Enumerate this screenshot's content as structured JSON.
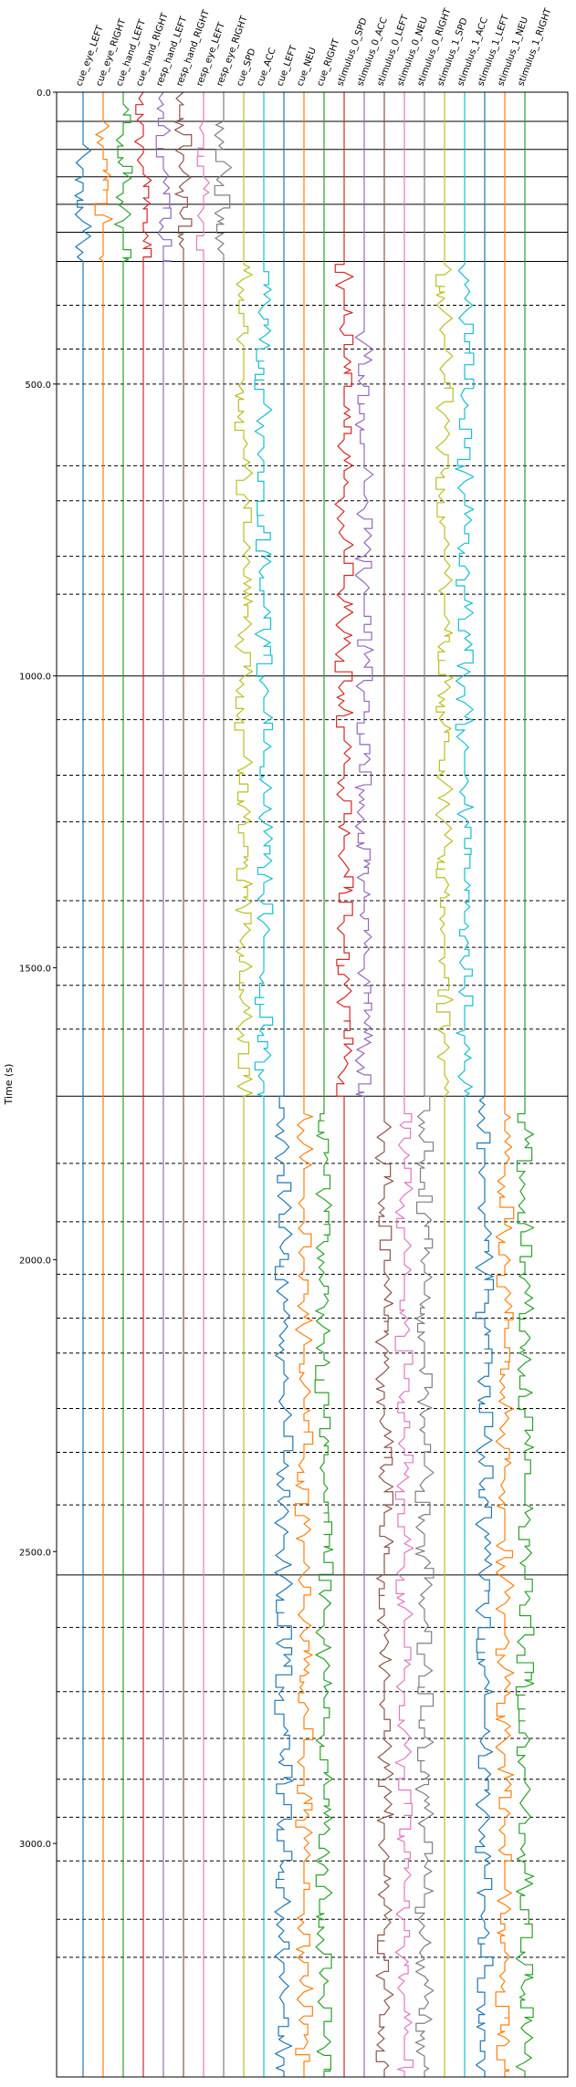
{
  "chart_data": {
    "type": "line",
    "title": "",
    "xlabel": "",
    "ylabel": "Time (s)",
    "ylim": [
      0,
      3400
    ],
    "y_inverted": true,
    "grid": "horizontal event lines (solid and dashed)",
    "yticks": [
      0,
      500,
      1000,
      1500,
      2000,
      2500,
      3000
    ],
    "ytick_labels": [
      "0.0",
      "500.0",
      "1000.0",
      "1500.0",
      "2000.0",
      "2500.0",
      "3000.0"
    ],
    "channels": [
      {
        "name": "cue_eye_LEFT",
        "color": "#1f77b4",
        "active": [
          [
            50,
            290
          ]
        ]
      },
      {
        "name": "cue_eye_RIGHT",
        "color": "#ff7f0e",
        "active": [
          [
            50,
            290
          ]
        ]
      },
      {
        "name": "cue_hand_LEFT",
        "color": "#2ca02c",
        "active": [
          [
            0,
            290
          ]
        ]
      },
      {
        "name": "cue_hand_RIGHT",
        "color": "#d62728",
        "active": [
          [
            0,
            290
          ]
        ]
      },
      {
        "name": "resp_hand_LEFT",
        "color": "#9467bd",
        "active": [
          [
            0,
            290
          ]
        ]
      },
      {
        "name": "resp_hand_RIGHT",
        "color": "#8c564b",
        "active": [
          [
            0,
            290
          ]
        ]
      },
      {
        "name": "resp_eye_LEFT",
        "color": "#e377c2",
        "active": [
          [
            50,
            290
          ]
        ]
      },
      {
        "name": "resp_eye_RIGHT",
        "color": "#7f7f7f",
        "active": [
          [
            50,
            290
          ]
        ]
      },
      {
        "name": "cue_SPD",
        "color": "#bcbd22",
        "active": [
          [
            295,
            1720
          ]
        ]
      },
      {
        "name": "cue_ACC",
        "color": "#17becf",
        "active": [
          [
            295,
            1720
          ]
        ]
      },
      {
        "name": "cue_LEFT",
        "color": "#1f77b4",
        "active": [
          [
            1720,
            3390
          ]
        ]
      },
      {
        "name": "cue_NEU",
        "color": "#ff7f0e",
        "active": [
          [
            1750,
            3390
          ]
        ]
      },
      {
        "name": "cue_RIGHT",
        "color": "#2ca02c",
        "active": [
          [
            1750,
            3390
          ]
        ]
      },
      {
        "name": "stimulus_0_SPD",
        "color": "#d62728",
        "active": [
          [
            295,
            1720
          ]
        ]
      },
      {
        "name": "stimulus_0_ACC",
        "color": "#9467bd",
        "active": [
          [
            410,
            1720
          ]
        ]
      },
      {
        "name": "stimulus_0_LEFT",
        "color": "#8c564b",
        "active": [
          [
            1750,
            3390
          ]
        ]
      },
      {
        "name": "stimulus_0_NEU",
        "color": "#e377c2",
        "active": [
          [
            1750,
            3390
          ]
        ]
      },
      {
        "name": "stimulus_0_RIGHT",
        "color": "#7f7f7f",
        "active": [
          [
            1720,
            3390
          ]
        ]
      },
      {
        "name": "stimulus_1_SPD",
        "color": "#bcbd22",
        "active": [
          [
            295,
            1720
          ]
        ]
      },
      {
        "name": "stimulus_1_ACC",
        "color": "#17becf",
        "active": [
          [
            295,
            1720
          ]
        ]
      },
      {
        "name": "stimulus_1_LEFT",
        "color": "#1f77b4",
        "active": [
          [
            1720,
            3390
          ]
        ]
      },
      {
        "name": "stimulus_1_NEU",
        "color": "#ff7f0e",
        "active": [
          [
            1750,
            3390
          ]
        ]
      },
      {
        "name": "stimulus_1_RIGHT",
        "color": "#2ca02c",
        "active": [
          [
            1750,
            3390
          ]
        ]
      }
    ],
    "hlines": [
      {
        "y": 0,
        "style": "solid"
      },
      {
        "y": 50,
        "style": "solid"
      },
      {
        "y": 98,
        "style": "solid"
      },
      {
        "y": 145,
        "style": "solid"
      },
      {
        "y": 192,
        "style": "solid"
      },
      {
        "y": 240,
        "style": "solid"
      },
      {
        "y": 290,
        "style": "solid"
      },
      {
        "y": 1000,
        "style": "solid"
      },
      {
        "y": 1720,
        "style": "solid"
      },
      {
        "y": 2540,
        "style": "solid"
      },
      {
        "y": 365,
        "style": "dashed"
      },
      {
        "y": 440,
        "style": "dashed"
      },
      {
        "y": 500,
        "style": "dashed"
      },
      {
        "y": 640,
        "style": "dashed"
      },
      {
        "y": 700,
        "style": "dashed"
      },
      {
        "y": 795,
        "style": "dashed"
      },
      {
        "y": 860,
        "style": "dashed"
      },
      {
        "y": 1075,
        "style": "dashed"
      },
      {
        "y": 1170,
        "style": "dashed"
      },
      {
        "y": 1250,
        "style": "dashed"
      },
      {
        "y": 1385,
        "style": "dashed"
      },
      {
        "y": 1465,
        "style": "dashed"
      },
      {
        "y": 1530,
        "style": "dashed"
      },
      {
        "y": 1605,
        "style": "dashed"
      },
      {
        "y": 1835,
        "style": "dashed"
      },
      {
        "y": 1935,
        "style": "dashed"
      },
      {
        "y": 2025,
        "style": "dashed"
      },
      {
        "y": 2100,
        "style": "dashed"
      },
      {
        "y": 2160,
        "style": "dashed"
      },
      {
        "y": 2255,
        "style": "dashed"
      },
      {
        "y": 2330,
        "style": "dashed"
      },
      {
        "y": 2420,
        "style": "dashed"
      },
      {
        "y": 2630,
        "style": "dashed"
      },
      {
        "y": 2740,
        "style": "dashed"
      },
      {
        "y": 2820,
        "style": "dashed"
      },
      {
        "y": 2890,
        "style": "dashed"
      },
      {
        "y": 2955,
        "style": "dashed"
      },
      {
        "y": 3030,
        "style": "dashed"
      },
      {
        "y": 3130,
        "style": "dashed"
      },
      {
        "y": 3195,
        "style": "dashed"
      }
    ]
  }
}
